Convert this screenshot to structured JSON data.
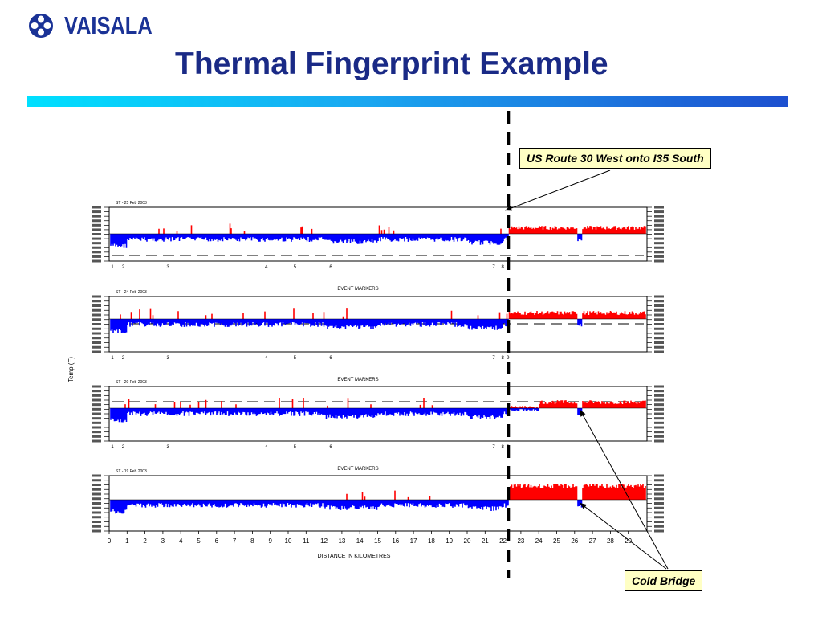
{
  "slide": {
    "logo_text": "VAISALA",
    "title": "Thermal Fingerprint Example"
  },
  "callouts": {
    "route": "US Route 30 West onto I35 South",
    "cold_bridge": "Cold Bridge"
  },
  "colors": {
    "warm": "#ff0000",
    "cold": "#0000ff",
    "title": "#1a2a86",
    "callout_bg": "#ffffc4"
  },
  "chart_data": {
    "type": "area",
    "ylabel": "Temp (F)",
    "xlabel": "DISTANCE IN KILOMETRES",
    "xlim": [
      0,
      30
    ],
    "x_ticks": [
      "0",
      "1",
      "2",
      "3",
      "4",
      "5",
      "6",
      "7",
      "8",
      "9",
      "10",
      "11",
      "12",
      "13",
      "14",
      "15",
      "16",
      "17",
      "18",
      "19",
      "20",
      "21",
      "22",
      "23",
      "24",
      "25",
      "26",
      "27",
      "28",
      "29"
    ],
    "event_label": "EVENT MARKERS",
    "event_markers": [
      {
        "label": "1",
        "km": 0
      },
      {
        "label": "2",
        "km": 0.6
      },
      {
        "label": "3",
        "km": 3.1
      },
      {
        "label": "4",
        "km": 8.6
      },
      {
        "label": "5",
        "km": 10.2
      },
      {
        "label": "6",
        "km": 12.2
      },
      {
        "label": "7",
        "km": 21.3
      },
      {
        "label": "8",
        "km": 21.8
      },
      {
        "label": "9",
        "km": 22.1
      }
    ],
    "junction_km": 22.3,
    "cold_bridge_km": 26.3,
    "panels": [
      {
        "name": "panel-1",
        "series_label": "ST - 25 Feb 2003"
      },
      {
        "name": "panel-2",
        "series_label": "ST - 24 Feb 2003"
      },
      {
        "name": "panel-3",
        "series_label": "ST - 20 Feb 2003"
      },
      {
        "name": "panel-4",
        "series_label": "ST - 19 Feb 2003"
      }
    ]
  }
}
